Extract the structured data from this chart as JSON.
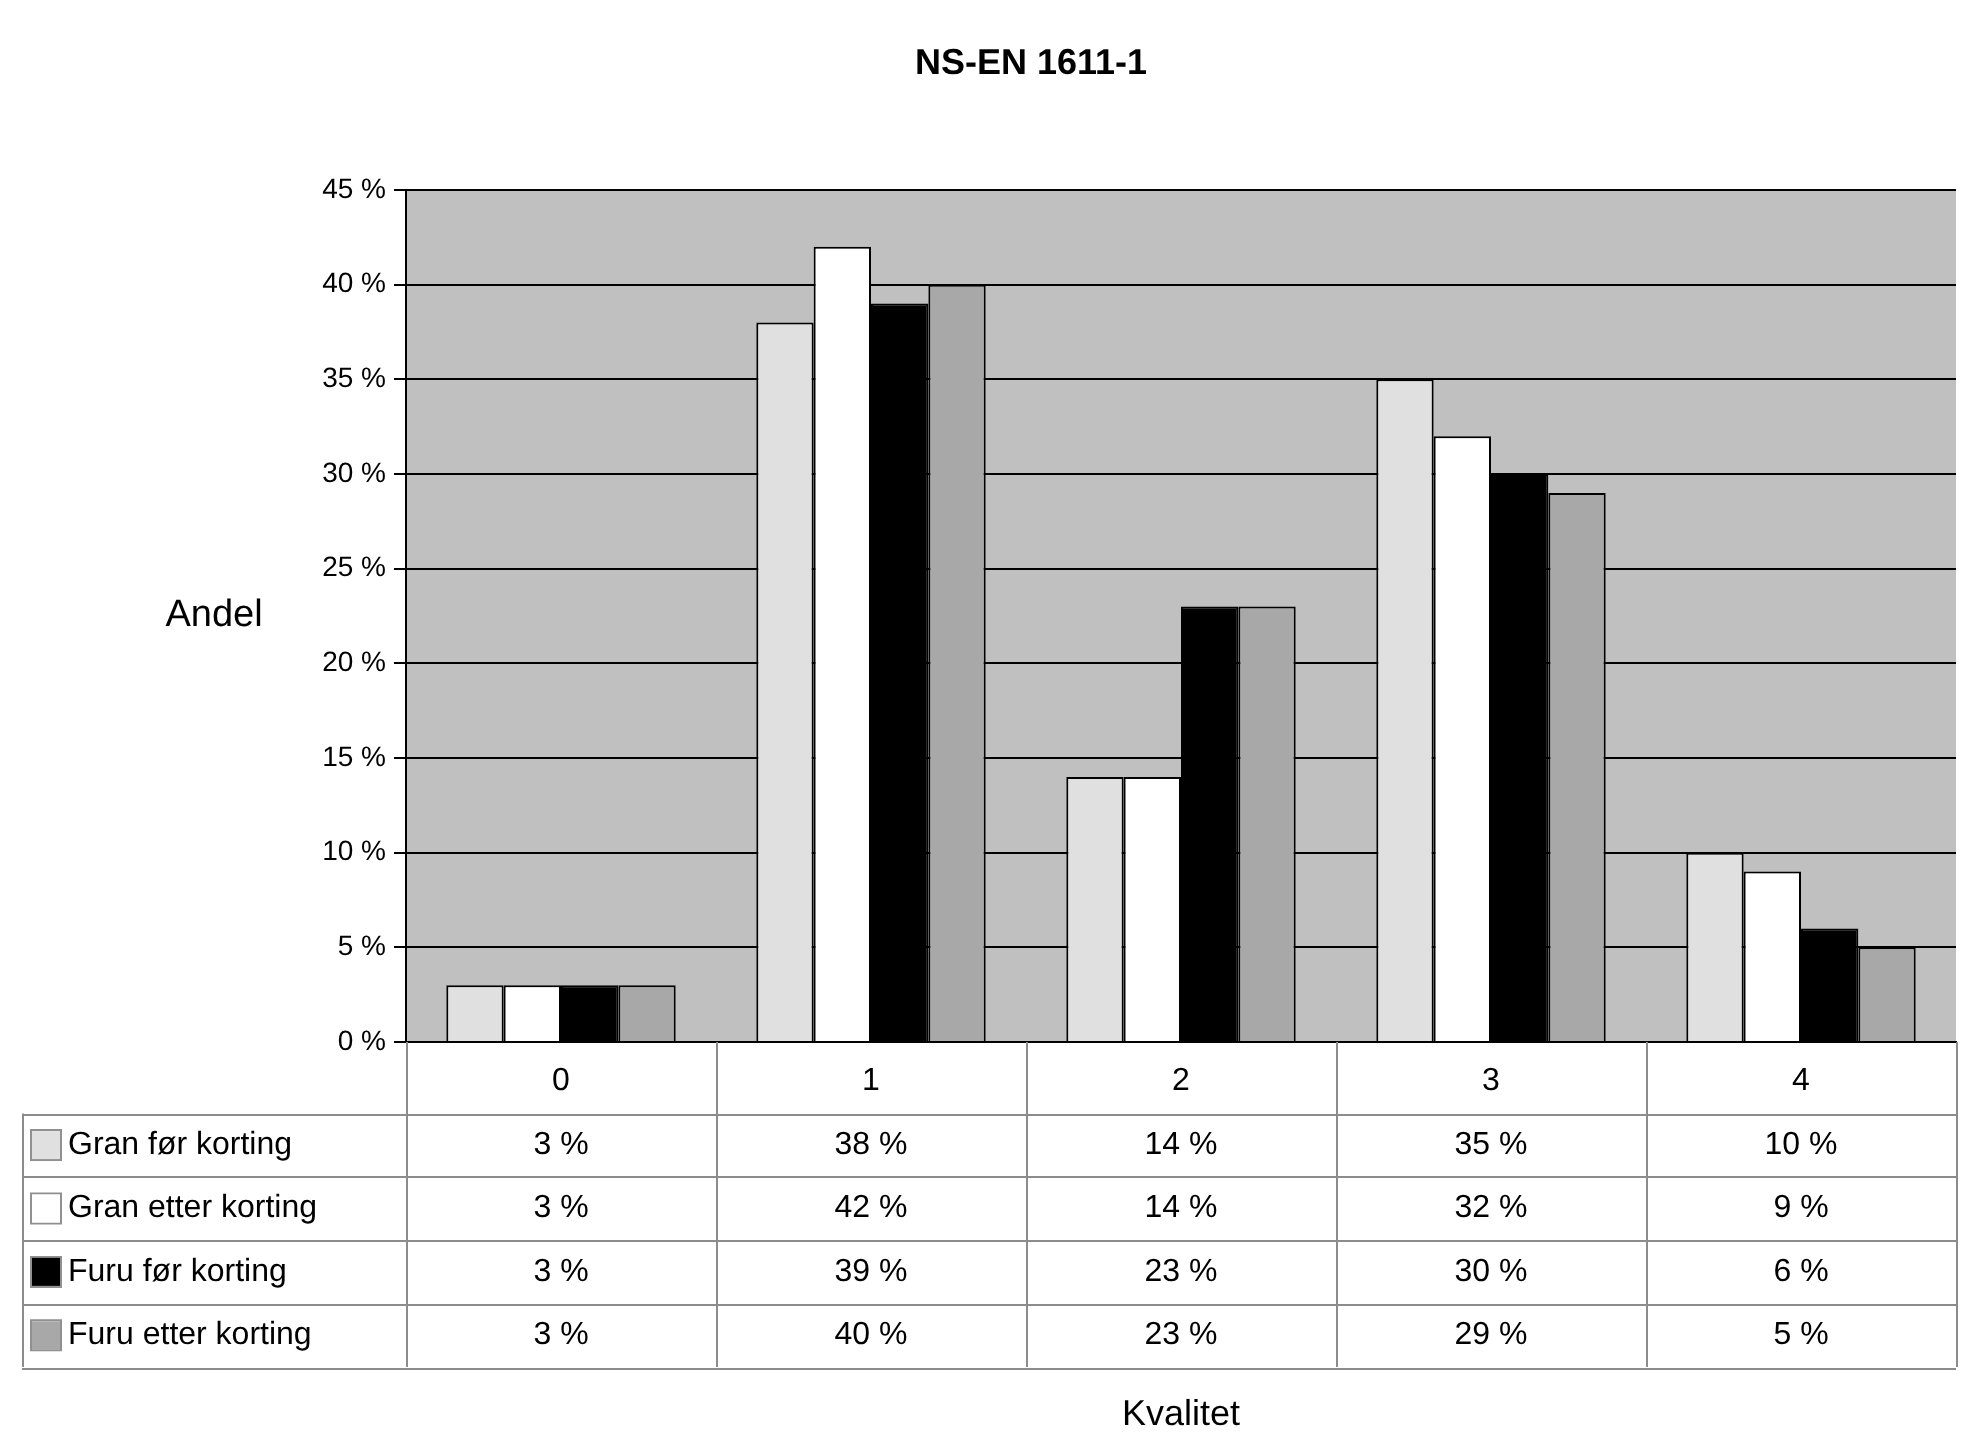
{
  "chart_data": {
    "type": "bar",
    "title": "NS-EN 1611-1",
    "ylabel": "Andel",
    "annotations": [
      "Kvalitet"
    ],
    "categories": [
      "0",
      "1",
      "2",
      "3",
      "4"
    ],
    "series": [
      {
        "name": "Gran før korting",
        "color": "#e0e0e0",
        "values": [
          3,
          38,
          14,
          35,
          10
        ],
        "value_labels": [
          "3 %",
          "38 %",
          "14 %",
          "35 %",
          "10 %"
        ]
      },
      {
        "name": "Gran etter korting",
        "color": "#ffffff",
        "values": [
          3,
          42,
          14,
          32,
          9
        ],
        "value_labels": [
          "3 %",
          "42 %",
          "14 %",
          "32 %",
          "9 %"
        ]
      },
      {
        "name": "Furu før korting",
        "color": "#000000",
        "values": [
          3,
          39,
          23,
          30,
          6
        ],
        "value_labels": [
          "3 %",
          "39 %",
          "23 %",
          "30 %",
          "6 %"
        ]
      },
      {
        "name": "Furu etter korting",
        "color": "#a8a8a8",
        "values": [
          3,
          40,
          23,
          29,
          5
        ],
        "value_labels": [
          "3 %",
          "40 %",
          "23 %",
          "29 %",
          "5 %"
        ]
      }
    ],
    "ylim": [
      0,
      45
    ],
    "yticks": [
      {
        "value": 0,
        "label": "0 %"
      },
      {
        "value": 5,
        "label": "5 %"
      },
      {
        "value": 10,
        "label": "10 %"
      },
      {
        "value": 15,
        "label": "15 %"
      },
      {
        "value": 20,
        "label": "20 %"
      },
      {
        "value": 25,
        "label": "25 %"
      },
      {
        "value": 30,
        "label": "30 %"
      },
      {
        "value": 35,
        "label": "35 %"
      },
      {
        "value": 40,
        "label": "40 %"
      },
      {
        "value": 45,
        "label": "45 %"
      }
    ],
    "grid": "y",
    "legend": "bottom"
  }
}
